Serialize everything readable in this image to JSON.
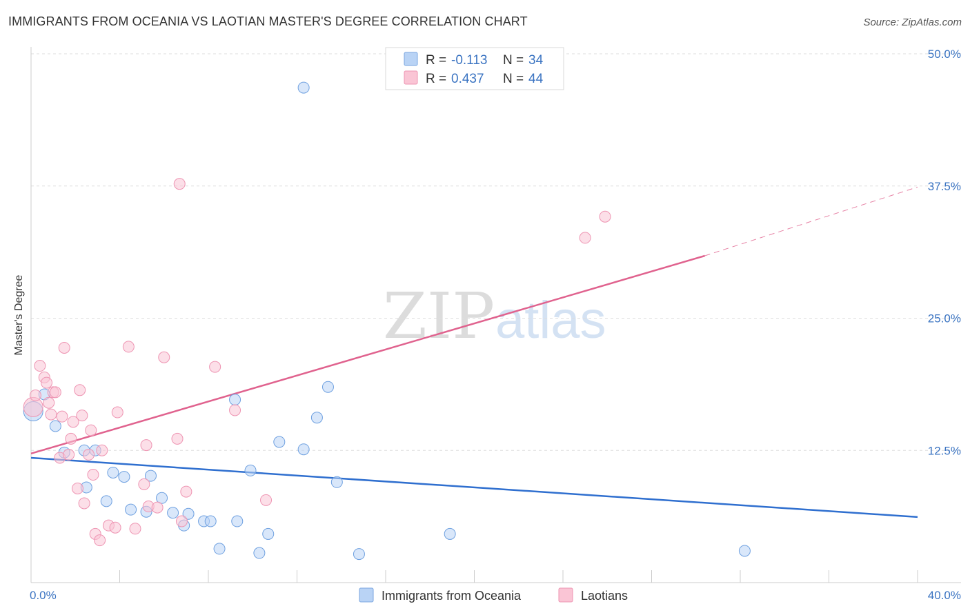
{
  "title": "IMMIGRANTS FROM OCEANIA VS LAOTIAN MASTER'S DEGREE CORRELATION CHART",
  "source": "Source: ZipAtlas.com",
  "watermark": {
    "zip": "ZIP",
    "atlas": "atlas"
  },
  "legend": {
    "r_label": "R =",
    "n_label": "N =",
    "entries": [
      {
        "r": "-0.113",
        "n": "34",
        "fill": "#b9d3f5",
        "stroke": "#7aa6e0"
      },
      {
        "r": "0.437",
        "n": "44",
        "fill": "#fac5d5",
        "stroke": "#ee94b2"
      }
    ]
  },
  "bottom_legend": [
    "Immigrants from Oceania",
    "Laotians"
  ],
  "chart_data": {
    "type": "scatter",
    "title": "IMMIGRANTS FROM OCEANIA VS LAOTIAN MASTER'S DEGREE CORRELATION CHART",
    "xlabel": "",
    "ylabel": "Master's Degree",
    "xlim": [
      0,
      40
    ],
    "ylim": [
      0,
      50
    ],
    "x_tick_labels": [
      "0.0%",
      "40.0%"
    ],
    "y_ticks": [
      12.5,
      25.0,
      37.5,
      50.0
    ],
    "y_tick_labels": [
      "12.5%",
      "25.0%",
      "37.5%",
      "50.0%"
    ],
    "grid": "horizontal dashed",
    "legend_position": "top-center",
    "series": [
      {
        "name": "Immigrants from Oceania",
        "color": "#6ea0e0",
        "fill": "#b9d3f5",
        "trend_color": "#2f6fcf",
        "trend": {
          "x": [
            0,
            40
          ],
          "y": [
            11.8,
            6.2
          ]
        },
        "points": [
          [
            0.1,
            16.2
          ],
          [
            0.6,
            17.8
          ],
          [
            1.1,
            14.8
          ],
          [
            1.5,
            12.3
          ],
          [
            2.4,
            12.5
          ],
          [
            2.9,
            12.5
          ],
          [
            2.5,
            9.0
          ],
          [
            3.4,
            7.7
          ],
          [
            3.7,
            10.4
          ],
          [
            4.2,
            10.0
          ],
          [
            4.5,
            6.9
          ],
          [
            5.2,
            6.7
          ],
          [
            5.4,
            10.1
          ],
          [
            5.9,
            8.0
          ],
          [
            6.4,
            6.6
          ],
          [
            6.9,
            5.4
          ],
          [
            7.1,
            6.5
          ],
          [
            7.8,
            5.8
          ],
          [
            8.1,
            5.8
          ],
          [
            8.5,
            3.2
          ],
          [
            9.2,
            17.3
          ],
          [
            9.3,
            5.8
          ],
          [
            9.9,
            10.6
          ],
          [
            10.3,
            2.8
          ],
          [
            10.7,
            4.6
          ],
          [
            11.2,
            13.3
          ],
          [
            12.3,
            12.6
          ],
          [
            12.3,
            46.8
          ],
          [
            12.9,
            15.6
          ],
          [
            13.4,
            18.5
          ],
          [
            13.8,
            9.5
          ],
          [
            14.8,
            2.7
          ],
          [
            18.9,
            4.6
          ],
          [
            32.2,
            3.0
          ]
        ]
      },
      {
        "name": "Laotians",
        "color": "#ee94b2",
        "fill": "#fac5d5",
        "trend_color": "#e0628e",
        "trend": {
          "x": [
            0,
            30.4
          ],
          "y": [
            12.2,
            30.9
          ]
        },
        "trend_extension": {
          "x": [
            30.4,
            40
          ],
          "y": [
            30.9,
            37.4
          ]
        },
        "points": [
          [
            0.1,
            16.6
          ],
          [
            0.2,
            17.7
          ],
          [
            0.4,
            20.5
          ],
          [
            0.6,
            19.4
          ],
          [
            0.7,
            18.9
          ],
          [
            0.8,
            17.0
          ],
          [
            0.9,
            15.9
          ],
          [
            1.0,
            18.0
          ],
          [
            1.1,
            18.0
          ],
          [
            1.3,
            11.8
          ],
          [
            1.4,
            15.7
          ],
          [
            1.5,
            22.2
          ],
          [
            1.7,
            12.1
          ],
          [
            1.8,
            13.6
          ],
          [
            1.9,
            15.2
          ],
          [
            2.1,
            8.9
          ],
          [
            2.2,
            18.2
          ],
          [
            2.3,
            15.8
          ],
          [
            2.4,
            7.5
          ],
          [
            2.6,
            12.1
          ],
          [
            2.7,
            14.4
          ],
          [
            2.8,
            10.2
          ],
          [
            2.9,
            4.6
          ],
          [
            3.1,
            4.0
          ],
          [
            3.2,
            12.5
          ],
          [
            3.5,
            5.4
          ],
          [
            3.8,
            5.2
          ],
          [
            3.9,
            16.1
          ],
          [
            4.4,
            22.3
          ],
          [
            4.7,
            5.1
          ],
          [
            5.1,
            9.3
          ],
          [
            5.2,
            13.0
          ],
          [
            5.3,
            7.2
          ],
          [
            5.7,
            7.1
          ],
          [
            6.0,
            21.3
          ],
          [
            6.6,
            13.6
          ],
          [
            6.7,
            37.7
          ],
          [
            6.8,
            5.8
          ],
          [
            7.0,
            8.6
          ],
          [
            8.3,
            20.4
          ],
          [
            9.2,
            16.3
          ],
          [
            10.6,
            7.8
          ],
          [
            25.0,
            32.6
          ],
          [
            25.9,
            34.6
          ]
        ]
      }
    ]
  }
}
